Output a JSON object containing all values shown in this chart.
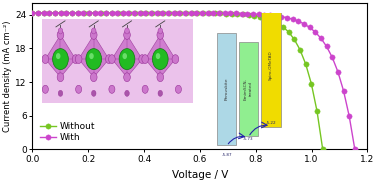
{
  "title": "",
  "xlabel": "Voltage / V",
  "ylabel": "Current density (mA cm⁻²)",
  "xlim": [
    0.0,
    1.2
  ],
  "ylim": [
    0,
    26
  ],
  "yticks": [
    0,
    6,
    12,
    18,
    24
  ],
  "xticks": [
    0.0,
    0.2,
    0.4,
    0.6,
    0.8,
    1.0,
    1.2
  ],
  "bg_color": "#ffffff",
  "line_without_color": "#76c622",
  "line_with_color": "#cc44cc",
  "voc_without": 1.04,
  "voc_with": 1.155,
  "jsc": 24.3,
  "legend_without": "Without",
  "legend_with": "With",
  "pero_color": "#add8e6",
  "emim_color": "#90ee90",
  "spiro_color": "#f0dc00",
  "arrow_color": "#2222aa",
  "pero_label": "Perovskite",
  "emim_label": "EmimSCN-\ntreated",
  "spiro_label": "Spiro-OMeTAD",
  "pero_ev": "-5.87",
  "emim_ev": "-5.73",
  "spiro_ev": "-5.22",
  "marker_size": 3.8
}
